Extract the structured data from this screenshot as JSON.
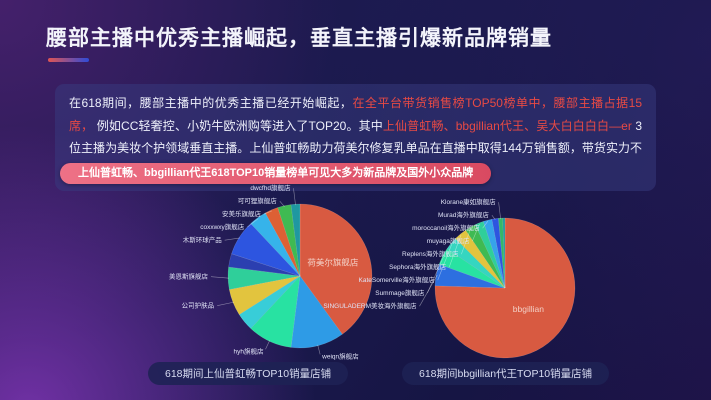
{
  "slide": {
    "title": "腰部主播中优秀主播崛起，垂直主播引爆新品牌销量",
    "paragraph_segments": [
      {
        "text": "在618期间，腰部主播中的优秀主播已经开始崛起，",
        "style": "normal"
      },
      {
        "text": "在全平台带货销售榜TOP50榜单中，腰部主播占据15席，",
        "style": "highlight"
      },
      {
        "text": " 例如CC轻奢控、小奶牛欧洲购等进入了TOP20。其中",
        "style": "normal"
      },
      {
        "text": "上仙普虹畅、bbgillian代王、吴大白白白白—er",
        "style": "highlight"
      },
      {
        "text": " 3位主播为美妆个护领域垂直主播。上仙普虹畅助力荷美尔修复乳单品在直播中取得144万销售额，带货实力不俗。",
        "style": "normal"
      }
    ],
    "badge": "上仙普虹畅、bbgillian代王618TOP10销量榜单可见大多为新品牌及国外小众品牌"
  },
  "colors": {
    "accent_from": "#e05553",
    "accent_to": "#2e4bd8",
    "highlight": "#e84a44",
    "text": "#eef0fb",
    "badge_from": "#ee7186",
    "badge_to": "#d94a61"
  },
  "chart_data": [
    {
      "type": "pie",
      "title": "618期间上仙普虹畅TOP10销量店铺",
      "unit": "estimated_share_percent",
      "legend_position": "outside-labels",
      "slices": [
        {
          "label": "荷美尔旗舰店",
          "value": 40,
          "color": "#d85a41",
          "inside": true
        },
        {
          "label": "weiqn旗舰店",
          "value": 12,
          "color": "#2e9be6"
        },
        {
          "label": "hyh旗舰店",
          "value": 10,
          "color": "#28e2a2"
        },
        {
          "label": "",
          "value": 4,
          "color": "#38cdd8"
        },
        {
          "label": "公司护肤品",
          "value": 6,
          "color": "#e2c43e"
        },
        {
          "label": "美恩斯旗舰店",
          "value": 5,
          "color": "#2fcf9a"
        },
        {
          "label": "",
          "value": 3,
          "color": "#2b3fb0"
        },
        {
          "label": "木斯环球产品",
          "value": 8,
          "color": "#2d55e0"
        },
        {
          "label": "coxxwxy旗舰店",
          "value": 4,
          "color": "#36b3ea"
        },
        {
          "label": "安美乐旗舰店",
          "value": 3,
          "color": "#dd6034"
        },
        {
          "label": "可可狸旗舰店",
          "value": 3,
          "color": "#3fba52"
        },
        {
          "label": "dwcfhd旗舰店",
          "value": 2,
          "color": "#1f98a0"
        }
      ]
    },
    {
      "type": "pie",
      "title": "618期间bbgillian代王TOP10销量店铺",
      "unit": "estimated_share_percent",
      "legend_position": "outside-labels",
      "slices": [
        {
          "label": "bbgillian",
          "value": 75.5,
          "color": "#d85a41",
          "inside": true
        },
        {
          "label": "SINGULADERM美妆海外旗舰店",
          "value": 5,
          "color": "#2d6fe0"
        },
        {
          "label": "Summage旗舰店",
          "value": 4,
          "color": "#28e2a2"
        },
        {
          "label": "KateSomerville海外旗舰店",
          "value": 3,
          "color": "#35d6c0"
        },
        {
          "label": "Sephora海外旗舰店",
          "value": 3,
          "color": "#e2c43e"
        },
        {
          "label": "Replens海外旗舰店",
          "value": 2.5,
          "color": "#3fba52"
        },
        {
          "label": "muyaga旗舰店",
          "value": 2,
          "color": "#2fcf9a"
        },
        {
          "label": "moroccanoil海外旗舰店",
          "value": 2,
          "color": "#36a3ea"
        },
        {
          "label": "Murad海外旗舰店",
          "value": 1.5,
          "color": "#2d55e0"
        },
        {
          "label": "Klorane康如旗舰店",
          "value": 1,
          "color": "#34b868"
        },
        {
          "label": "",
          "value": 0.5,
          "color": "#1f98a0"
        }
      ]
    }
  ]
}
